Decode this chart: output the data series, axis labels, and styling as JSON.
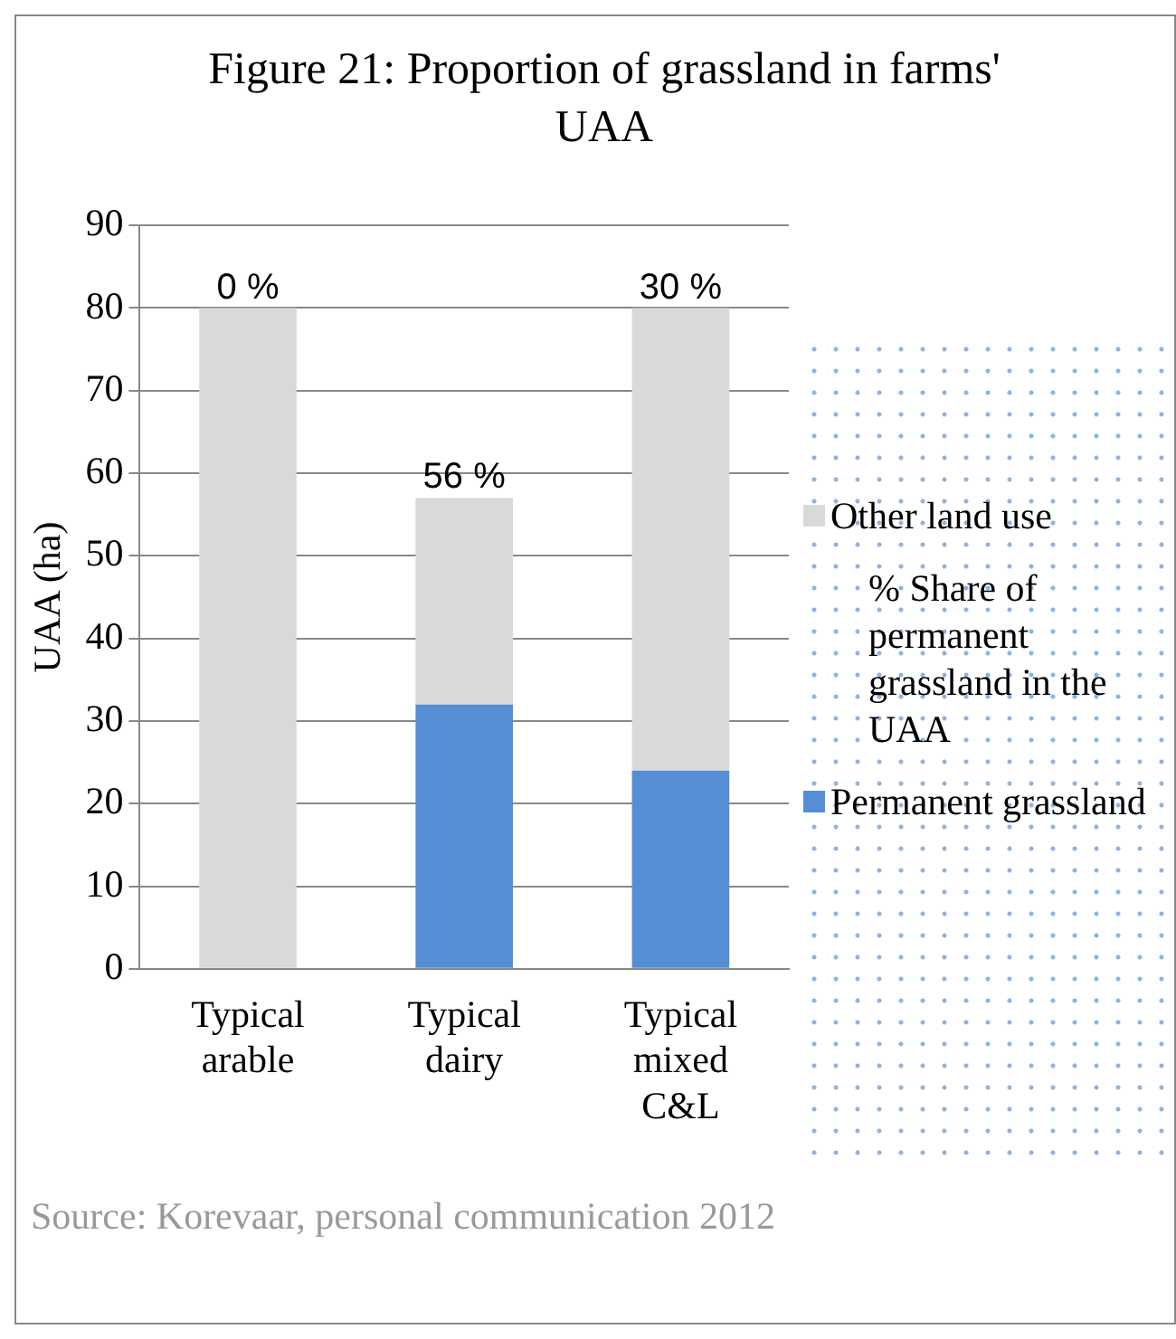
{
  "chart_data": {
    "type": "bar",
    "title": "Figure 21: Proportion of grassland in farms' UAA",
    "ylabel": "UAA (ha)",
    "categories": [
      "Typical arable",
      "Typical dairy",
      "Typical mixed C&L"
    ],
    "series": [
      {
        "name": "Permanent grassland",
        "color": "#558ed5",
        "values": [
          0,
          32,
          24
        ]
      },
      {
        "name": "Other land use",
        "color": "#d9d9d9",
        "values": [
          80,
          25,
          56
        ]
      }
    ],
    "stacked": true,
    "ylim": [
      0,
      90
    ],
    "yticks": [
      0,
      10,
      20,
      30,
      40,
      50,
      60,
      70,
      80,
      90
    ],
    "grid": "y",
    "legend": "right",
    "annotations": [
      {
        "text": "0 %",
        "x": "Typical arable",
        "y": 80
      },
      {
        "text": "56 %",
        "x": "Typical dairy",
        "y": 57
      },
      {
        "text": "30 %",
        "x": "Typical mixed C&L",
        "y": 80
      },
      "% Share of permanent grassland in the UAA",
      "Source: Korevaar, personal communication 2012"
    ]
  }
}
